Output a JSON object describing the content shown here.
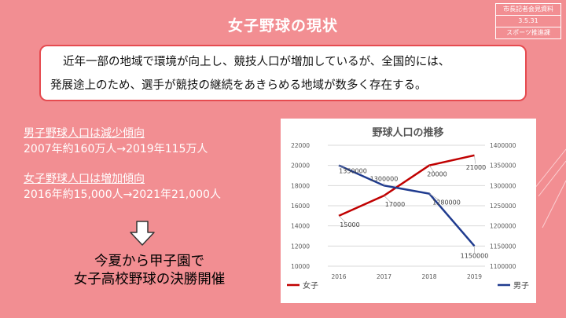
{
  "slide": {
    "title": "女子野球の現状",
    "meta": [
      "市長記者会見資料",
      "3.5.31",
      "スポーツ推進課"
    ],
    "summary_line1": "近年一部の地域で環境が向上し、競技人口が増加しているが、全国的には、",
    "summary_line2": "発展途上のため、選手が競技の継続をあきらめる地域が数多く存在する。",
    "male_head": "男子野球人口は減少傾向",
    "male_detail": "2007年約160万人→2019年115万人",
    "female_head": "女子野球人口は増加傾向",
    "female_detail": "2016年約15,000人→2021年21,000人",
    "news_line1": "今夏から甲子園で",
    "news_line2": "女子高校野球の決勝開催"
  },
  "chart_data": {
    "type": "line",
    "title": "野球人口の推移",
    "x": [
      "2016",
      "2017",
      "2018",
      "2019"
    ],
    "series": [
      {
        "name": "女子",
        "axis": "left",
        "color": "#c00000",
        "values": [
          15000,
          17000,
          20000,
          21000
        ],
        "labels": [
          "15000",
          "17000",
          "20000",
          "21000"
        ]
      },
      {
        "name": "男子",
        "axis": "right",
        "color": "#1f3b8f",
        "values": [
          1350000,
          1300000,
          1280000,
          1150000
        ],
        "labels": [
          "1350000",
          "1300000",
          "1280000",
          "1150000"
        ]
      }
    ],
    "ylim_left": [
      10000,
      22000
    ],
    "yticks_left": [
      "10000",
      "12000",
      "14000",
      "16000",
      "18000",
      "20000",
      "22000"
    ],
    "ylim_right": [
      1100000,
      1400000
    ],
    "yticks_right": [
      "1100000",
      "1150000",
      "1200000",
      "1250000",
      "1300000",
      "1350000",
      "1400000"
    ],
    "grid": true,
    "legend": "bottom"
  }
}
